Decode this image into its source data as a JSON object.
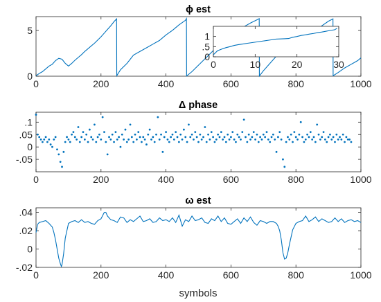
{
  "colors": {
    "series": "#0072BD",
    "axis": "#262626",
    "background": "#ffffff"
  },
  "chart_data": [
    {
      "type": "line",
      "title": "ϕ est",
      "xlabel": "",
      "ylabel": "",
      "xlim": [
        0,
        1000
      ],
      "ylim": [
        0,
        6.5
      ],
      "xticks": [
        0,
        200,
        400,
        600,
        800,
        1000
      ],
      "yticks": [
        0,
        5
      ],
      "grid": false,
      "series": [
        {
          "x": [
            0,
            10,
            20,
            30,
            40,
            50,
            60,
            70,
            80,
            90,
            100,
            110,
            120,
            130,
            140,
            150,
            160,
            170,
            180,
            190,
            200,
            210,
            220,
            230,
            240,
            248,
            248.5,
            260,
            280,
            300,
            320,
            340,
            360,
            380,
            400,
            420,
            440,
            460,
            463,
            463.5,
            480,
            500,
            520,
            540,
            560,
            580,
            600,
            620,
            640,
            660,
            680,
            687,
            687.5,
            700,
            720,
            740,
            760,
            770,
            780,
            800,
            820,
            840,
            860,
            880,
            900,
            914,
            914.5,
            930,
            950,
            970,
            990,
            1000
          ],
          "y": [
            0.05,
            0.3,
            0.5,
            0.8,
            1.1,
            1.3,
            1.7,
            1.95,
            1.85,
            1.4,
            1.1,
            1.4,
            1.75,
            2.05,
            2.35,
            2.7,
            3.0,
            3.3,
            3.6,
            3.95,
            4.3,
            4.7,
            5.1,
            5.5,
            5.95,
            6.25,
            0.05,
            0.7,
            1.4,
            2.3,
            2.7,
            3.1,
            3.5,
            3.9,
            4.5,
            5.0,
            5.6,
            6.1,
            6.28,
            0.02,
            0.5,
            1.2,
            1.9,
            2.6,
            3.3,
            3.9,
            4.4,
            4.95,
            5.4,
            5.8,
            6.15,
            6.28,
            0.02,
            0.6,
            1.4,
            2.2,
            2.6,
            2.2,
            2.5,
            3.1,
            3.7,
            4.3,
            4.9,
            5.5,
            6.0,
            6.25,
            0.05,
            0.4,
            0.9,
            1.3,
            1.7,
            2.0
          ]
        }
      ],
      "inset": {
        "type": "line",
        "xlim": [
          0,
          30
        ],
        "ylim": [
          0,
          1.5
        ],
        "xticks": [
          0,
          10,
          20,
          30
        ],
        "yticks": [
          0,
          0.5,
          1
        ],
        "series": [
          {
            "x": [
              0,
              1,
              2,
              3,
              4,
              5,
              6,
              7,
              8,
              9,
              10,
              11,
              12,
              13,
              14,
              15,
              16,
              17,
              18,
              19,
              20,
              21,
              22,
              23,
              24,
              25,
              26,
              27,
              28,
              29,
              29.6
            ],
            "y": [
              0.1,
              0.3,
              0.38,
              0.45,
              0.5,
              0.56,
              0.6,
              0.63,
              0.66,
              0.69,
              0.72,
              0.75,
              0.78,
              0.81,
              0.84,
              0.87,
              0.88,
              0.89,
              0.9,
              0.96,
              1.0,
              1.05,
              1.08,
              1.12,
              1.15,
              1.19,
              1.22,
              1.26,
              1.3,
              1.33,
              1.4
            ]
          }
        ]
      }
    },
    {
      "type": "scatter",
      "title": "Δ phase",
      "xlabel": "",
      "ylabel": "",
      "xlim": [
        0,
        1000
      ],
      "ylim": [
        -0.1,
        0.14
      ],
      "xticks": [
        0,
        200,
        400,
        600,
        800,
        1000
      ],
      "yticks": [
        -0.05,
        0,
        0.05,
        0.1
      ],
      "grid": false,
      "series": [
        {
          "x_start": 0,
          "x_step": 5,
          "y": [
            0.13,
            0.05,
            0.04,
            0.03,
            0.02,
            0.03,
            0.04,
            0.02,
            0.03,
            0.01,
            0.0,
            0.03,
            0.04,
            -0.01,
            -0.03,
            -0.06,
            -0.08,
            -0.02,
            0.02,
            0.04,
            0.03,
            0.02,
            0.05,
            0.06,
            0.04,
            0.03,
            0.08,
            0.02,
            0.04,
            0.06,
            0.03,
            0.05,
            0.02,
            0.07,
            0.04,
            0.03,
            0.09,
            0.02,
            0.04,
            0.05,
            0.03,
            0.12,
            0.06,
            0.02,
            -0.03,
            0.04,
            0.03,
            0.05,
            0.02,
            0.06,
            0.03,
            0.04,
            0.0,
            0.05,
            0.03,
            0.07,
            0.02,
            0.03,
            0.09,
            0.04,
            0.02,
            0.05,
            0.03,
            0.06,
            0.04,
            0.02,
            0.04,
            0.03,
            0.01,
            0.05,
            0.07,
            0.03,
            0.04,
            0.02,
            0.05,
            0.12,
            0.03,
            0.05,
            -0.02,
            0.04,
            0.06,
            0.03,
            0.02,
            0.04,
            0.05,
            0.03,
            0.06,
            0.04,
            0.02,
            0.05,
            0.03,
            0.07,
            0.04,
            0.02,
            0.09,
            0.04,
            0.05,
            0.03,
            0.06,
            0.04,
            0.02,
            0.05,
            0.03,
            0.04,
            0.08,
            0.02,
            0.05,
            0.03,
            0.06,
            0.04,
            0.02,
            0.03,
            0.05,
            0.04,
            0.06,
            0.03,
            0.04,
            0.02,
            0.05,
            0.03,
            0.04,
            0.06,
            0.03,
            0.02,
            0.05,
            0.04,
            0.03,
            0.06,
            0.11,
            0.04,
            0.02,
            0.05,
            0.03,
            0.04,
            0.06,
            0.03,
            0.05,
            0.02,
            0.04,
            0.03,
            0.05,
            0.04,
            0.06,
            0.03,
            0.02,
            0.04,
            0.05,
            0.03,
            -0.02,
            0.04,
            0.06,
            0.03,
            -0.05,
            -0.08,
            0.02,
            0.04,
            0.03,
            0.05,
            0.02,
            0.06,
            0.04,
            0.03,
            0.05,
            0.1,
            0.04,
            0.02,
            0.03,
            0.05,
            0.04,
            0.06,
            0.03,
            0.04,
            0.02,
            0.09,
            0.05,
            0.03,
            0.04,
            0.06,
            0.03,
            0.02,
            0.04,
            0.05,
            0.03,
            0.04,
            0.02,
            0.05,
            0.03,
            0.04,
            0.03,
            0.05,
            0.02,
            0.04,
            0.03,
            0.03,
            0.02
          ]
        }
      ]
    },
    {
      "type": "line",
      "title": "ω est",
      "xlabel": "symbols",
      "ylabel": "",
      "xlim": [
        0,
        1000
      ],
      "ylim": [
        -0.02,
        0.045
      ],
      "xticks": [
        0,
        200,
        400,
        600,
        800,
        1000
      ],
      "yticks": [
        -0.02,
        0,
        0.02,
        0.04
      ],
      "grid": false,
      "series": [
        {
          "x": [
            0,
            5,
            10,
            20,
            30,
            40,
            50,
            55,
            60,
            65,
            70,
            75,
            78,
            80,
            85,
            90,
            100,
            110,
            120,
            130,
            140,
            150,
            160,
            170,
            180,
            190,
            200,
            210,
            215,
            220,
            230,
            240,
            250,
            260,
            270,
            280,
            290,
            300,
            310,
            320,
            330,
            340,
            350,
            360,
            370,
            380,
            390,
            400,
            410,
            420,
            430,
            440,
            450,
            460,
            470,
            480,
            490,
            500,
            510,
            520,
            530,
            540,
            550,
            560,
            570,
            580,
            590,
            600,
            610,
            620,
            630,
            640,
            650,
            660,
            670,
            680,
            690,
            700,
            710,
            720,
            730,
            740,
            745,
            750,
            755,
            760,
            765,
            770,
            775,
            780,
            790,
            800,
            810,
            820,
            830,
            840,
            850,
            860,
            870,
            880,
            890,
            900,
            910,
            920,
            930,
            940,
            950,
            960,
            970,
            980,
            990,
            1000
          ],
          "y": [
            0.018,
            0.027,
            0.029,
            0.03,
            0.031,
            0.028,
            0.024,
            0.018,
            0.01,
            0.0,
            -0.01,
            -0.016,
            -0.019,
            -0.017,
            -0.005,
            0.012,
            0.028,
            0.03,
            0.031,
            0.029,
            0.032,
            0.029,
            0.03,
            0.028,
            0.027,
            0.031,
            0.033,
            0.04,
            0.04,
            0.036,
            0.032,
            0.031,
            0.029,
            0.035,
            0.034,
            0.029,
            0.032,
            0.03,
            0.033,
            0.036,
            0.03,
            0.031,
            0.033,
            0.029,
            0.03,
            0.034,
            0.031,
            0.032,
            0.03,
            0.034,
            0.029,
            0.037,
            0.025,
            0.032,
            0.03,
            0.036,
            0.031,
            0.032,
            0.034,
            0.029,
            0.028,
            0.033,
            0.031,
            0.036,
            0.03,
            0.034,
            0.028,
            0.027,
            0.03,
            0.033,
            0.028,
            0.034,
            0.03,
            0.035,
            0.029,
            0.026,
            0.031,
            0.03,
            0.028,
            0.03,
            0.03,
            0.028,
            0.025,
            0.02,
            0.01,
            -0.004,
            -0.011,
            -0.01,
            -0.004,
            0.005,
            0.021,
            0.028,
            0.03,
            0.031,
            0.036,
            0.03,
            0.032,
            0.035,
            0.03,
            0.033,
            0.031,
            0.029,
            0.03,
            0.034,
            0.03,
            0.033,
            0.029,
            0.031,
            0.032,
            0.03,
            0.031,
            0.029
          ]
        }
      ]
    }
  ]
}
